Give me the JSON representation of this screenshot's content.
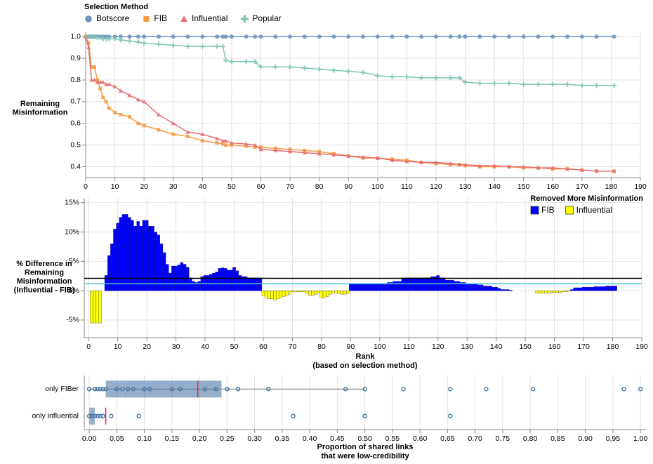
{
  "chart_data": [
    {
      "type": "line",
      "legend_title": "Selection Method",
      "y_label": [
        "Remaining",
        "Misinformation"
      ],
      "x": [
        0,
        1,
        2,
        3,
        4,
        5,
        6,
        7,
        8,
        10,
        12,
        15,
        18,
        20,
        25,
        30,
        35,
        40,
        45,
        47,
        48,
        50,
        55,
        58,
        60,
        65,
        70,
        75,
        80,
        85,
        90,
        95,
        100,
        105,
        110,
        115,
        120,
        125,
        128,
        130,
        135,
        140,
        145,
        150,
        155,
        160,
        165,
        170,
        175,
        181
      ],
      "series": [
        {
          "name": "Botscore",
          "color": "#6f93bd",
          "marker": "circle",
          "values": [
            1,
            1,
            1,
            1,
            1,
            1,
            1,
            1,
            1,
            1,
            1,
            1,
            1,
            1,
            1,
            1,
            1,
            1,
            1,
            1,
            1,
            1,
            1,
            1,
            1,
            1,
            1,
            1,
            1,
            1,
            1,
            1,
            1,
            1,
            1,
            1,
            1,
            1,
            1,
            1,
            1,
            1,
            1,
            1,
            1,
            1,
            1,
            1,
            1,
            1
          ]
        },
        {
          "name": "FIB",
          "color": "#f59b45",
          "marker": "square",
          "values": [
            1,
            0.97,
            0.86,
            0.86,
            0.8,
            0.76,
            0.72,
            0.7,
            0.67,
            0.65,
            0.64,
            0.63,
            0.6,
            0.59,
            0.57,
            0.55,
            0.54,
            0.52,
            0.51,
            0.505,
            0.5,
            0.5,
            0.495,
            0.49,
            0.49,
            0.485,
            0.48,
            0.475,
            0.47,
            0.46,
            0.45,
            0.44,
            0.44,
            0.435,
            0.43,
            0.42,
            0.415,
            0.41,
            0.41,
            0.405,
            0.4,
            0.4,
            0.4,
            0.395,
            0.395,
            0.39,
            0.39,
            0.385,
            0.38,
            0.38
          ]
        },
        {
          "name": "Influential",
          "color": "#e56b70",
          "marker": "triangle",
          "values": [
            1,
            0.95,
            0.8,
            0.8,
            0.79,
            0.79,
            0.79,
            0.78,
            0.78,
            0.77,
            0.75,
            0.73,
            0.71,
            0.7,
            0.64,
            0.6,
            0.56,
            0.55,
            0.53,
            0.52,
            0.52,
            0.51,
            0.505,
            0.5,
            0.48,
            0.475,
            0.47,
            0.465,
            0.46,
            0.455,
            0.45,
            0.445,
            0.44,
            0.43,
            0.425,
            0.42,
            0.42,
            0.415,
            0.41,
            0.41,
            0.405,
            0.405,
            0.4,
            0.4,
            0.395,
            0.395,
            0.39,
            0.385,
            0.38,
            0.38
          ]
        },
        {
          "name": "Popular",
          "color": "#7fc4b6",
          "marker": "cross",
          "values": [
            1,
            1,
            1,
            1,
            0.995,
            0.995,
            0.99,
            0.99,
            0.99,
            0.99,
            0.985,
            0.98,
            0.975,
            0.97,
            0.965,
            0.96,
            0.955,
            0.955,
            0.955,
            0.955,
            0.89,
            0.885,
            0.885,
            0.885,
            0.86,
            0.86,
            0.86,
            0.855,
            0.85,
            0.845,
            0.84,
            0.835,
            0.82,
            0.815,
            0.815,
            0.81,
            0.81,
            0.81,
            0.81,
            0.79,
            0.785,
            0.785,
            0.785,
            0.78,
            0.78,
            0.78,
            0.78,
            0.775,
            0.775,
            0.775
          ]
        }
      ],
      "xlim": [
        0,
        190
      ],
      "xticks": [
        0,
        10,
        20,
        30,
        40,
        50,
        60,
        70,
        80,
        90,
        100,
        110,
        120,
        130,
        140,
        150,
        160,
        170,
        180,
        190
      ],
      "ylim": [
        0.35,
        1.02
      ],
      "yticks": [
        0.4,
        0.5,
        0.6,
        0.7,
        0.8,
        0.9,
        {
          "value": 1,
          "label": "1.0"
        }
      ],
      "grid": true
    },
    {
      "type": "bar",
      "y_label": [
        "% Difference in",
        "Remaining",
        "Misinformation",
        "(Influential - FIB)"
      ],
      "x_label": [
        "Rank",
        "(based on selection method)"
      ],
      "x": [
        1,
        2,
        3,
        4,
        5,
        6,
        7,
        8,
        9,
        10,
        11,
        12,
        13,
        14,
        15,
        16,
        17,
        18,
        19,
        20,
        21,
        22,
        23,
        24,
        25,
        26,
        27,
        28,
        29,
        30,
        31,
        32,
        33,
        34,
        35,
        36,
        37,
        38,
        39,
        40,
        41,
        42,
        43,
        44,
        45,
        46,
        47,
        48,
        49,
        50,
        51,
        52,
        53,
        54,
        55,
        56,
        57,
        58,
        59,
        60,
        61,
        62,
        63,
        64,
        65,
        66,
        67,
        68,
        69,
        70,
        71,
        72,
        73,
        74,
        75,
        76,
        77,
        78,
        79,
        80,
        81,
        82,
        83,
        84,
        85,
        86,
        87,
        88,
        89,
        90,
        91,
        92,
        93,
        94,
        95,
        96,
        97,
        98,
        99,
        100,
        101,
        102,
        103,
        104,
        105,
        106,
        107,
        108,
        109,
        110,
        111,
        112,
        113,
        114,
        115,
        116,
        117,
        118,
        119,
        120,
        121,
        122,
        123,
        124,
        125,
        126,
        127,
        128,
        129,
        130,
        131,
        132,
        133,
        134,
        135,
        136,
        137,
        138,
        139,
        140,
        141,
        142,
        143,
        144,
        145,
        146,
        147,
        148,
        149,
        150,
        151,
        152,
        153,
        154,
        155,
        156,
        157,
        158,
        159,
        160,
        161,
        162,
        163,
        164,
        165,
        166,
        167,
        168,
        169,
        170,
        171,
        172,
        173,
        174,
        175,
        176,
        177,
        178,
        179,
        180,
        181
      ],
      "values": [
        -5.5,
        -5.5,
        -5.5,
        -5.5,
        0,
        2.6,
        6,
        8,
        10.5,
        11.5,
        12.5,
        13,
        13,
        12.5,
        12,
        11,
        11.8,
        11,
        12,
        12,
        11,
        11,
        10,
        9.5,
        8,
        6.5,
        4.5,
        3,
        4.2,
        4.2,
        4.4,
        4.8,
        4.5,
        4,
        2.2,
        1.6,
        1.4,
        1.6,
        2.4,
        2.6,
        2.6,
        2.8,
        3,
        3.2,
        3.8,
        3.9,
        3.8,
        3.5,
        3.5,
        4,
        3.4,
        2.6,
        2.4,
        2.4,
        2.2,
        2.2,
        2.2,
        2.2,
        2.2,
        -0.8,
        -1.2,
        -1.4,
        -1.4,
        -1.6,
        -1.4,
        -1.2,
        -1,
        -0.8,
        -0.6,
        -0.2,
        -0.2,
        -0.2,
        -0.2,
        -0.2,
        -0.5,
        -0.8,
        -0.8,
        -0.6,
        -0.4,
        -1.2,
        -1.2,
        -1,
        -0.6,
        -0.4,
        -0.4,
        -0.5,
        -0.6,
        -0.6,
        -0.5,
        1.2,
        1.2,
        1.2,
        1.2,
        1.2,
        1.2,
        1.2,
        1.2,
        1.2,
        1.2,
        1.2,
        1.2,
        1.2,
        1.4,
        1.4,
        1.6,
        1.6,
        1.6,
        2.2,
        2.2,
        2.2,
        2.2,
        2.2,
        2.2,
        2.2,
        2.2,
        2.2,
        2.2,
        2.4,
        2.4,
        2.6,
        2.2,
        2.2,
        1.8,
        1.8,
        1.8,
        1.6,
        1.6,
        1.4,
        1.4,
        1.2,
        1.2,
        1.2,
        1.1,
        1,
        1,
        0.8,
        0.8,
        0.8,
        0.6,
        0.6,
        0.4,
        0.2,
        0.2,
        0.2,
        0.1,
        0,
        0,
        0,
        0,
        0,
        0,
        0,
        0,
        -0.4,
        -0.4,
        -0.4,
        -0.4,
        -0.4,
        -0.3,
        -0.3,
        -0.3,
        -0.3,
        -0.2,
        -0.2,
        -0.1,
        0.2,
        0.5,
        0.5,
        0.5,
        0.6,
        0.6,
        0.6,
        0.6,
        0.7,
        0.7,
        0.7,
        0.7,
        0.8,
        0.8,
        0.8,
        0.8
      ],
      "legend_title": "Removed More Misinformation",
      "legend": [
        {
          "name": "FIB",
          "color": "#0000ff"
        },
        {
          "name": "Influential",
          "color": "#ffff00"
        }
      ],
      "reference_lines": [
        {
          "value": 2.1,
          "color": "#000000"
        },
        {
          "value": 1.2,
          "color": "#4cc3e8"
        }
      ],
      "xlim": [
        -1.5,
        190
      ],
      "xticks": [
        0,
        10,
        20,
        30,
        40,
        50,
        60,
        70,
        80,
        90,
        100,
        110,
        120,
        130,
        140,
        150,
        160,
        170,
        180,
        190
      ],
      "ylim": [
        -8,
        15.8
      ],
      "yticks": [
        {
          "value": -5,
          "label": "-5%"
        },
        {
          "value": 0,
          "label": "0%"
        },
        {
          "value": 5,
          "label": "5%"
        },
        {
          "value": 10,
          "label": "10%"
        },
        {
          "value": 15,
          "label": "15%"
        }
      ],
      "grid": true
    },
    {
      "type": "box",
      "x_label": [
        "Proportion of shared links",
        "that were low-credibility"
      ],
      "categories": [
        "only FIBer",
        "only influential"
      ],
      "color": "#4c78a8",
      "mean_color": "#e03030",
      "boxes": [
        {
          "q1": 0.03,
          "median": 0.06,
          "q3": 0.24,
          "mean": 0.197,
          "whisker_low": 0,
          "whisker_high": 0.5,
          "points": [
            0,
            0.01,
            0.015,
            0.02,
            0.025,
            0.03,
            0.05,
            0.06,
            0.07,
            0.08,
            0.1,
            0.11,
            0.15,
            0.165,
            0.21,
            0.23,
            0.25,
            0.27,
            0.325,
            0.465,
            0.5,
            0.57,
            0.655,
            0.72,
            0.805,
            0.97,
            1
          ]
        },
        {
          "q1": 0,
          "median": 0.002,
          "q3": 0.01,
          "mean": 0.03,
          "whisker_low": 0,
          "whisker_high": 0.02,
          "points": [
            0,
            0.005,
            0.01,
            0.015,
            0.02,
            0.025,
            0.04,
            0.09,
            0.37,
            0.5,
            0.655
          ]
        }
      ],
      "xlim": [
        -0.009,
        1.01
      ],
      "xticks": [
        {
          "value": 0,
          "label": "0.00"
        },
        0.05,
        {
          "value": 0.1,
          "label": "0.10"
        },
        0.15,
        {
          "value": 0.2,
          "label": "0.20"
        },
        0.25,
        {
          "value": 0.3,
          "label": "0.30"
        },
        0.35,
        {
          "value": 0.4,
          "label": "0.40"
        },
        0.45,
        {
          "value": 0.5,
          "label": "0.50"
        },
        0.55,
        {
          "value": 0.6,
          "label": "0.60"
        },
        0.65,
        {
          "value": 0.7,
          "label": "0.70"
        },
        0.75,
        {
          "value": 0.8,
          "label": "0.80"
        },
        0.85,
        {
          "value": 0.9,
          "label": "0.90"
        },
        0.95,
        {
          "value": 1,
          "label": "1.00"
        }
      ],
      "grid": true
    }
  ]
}
